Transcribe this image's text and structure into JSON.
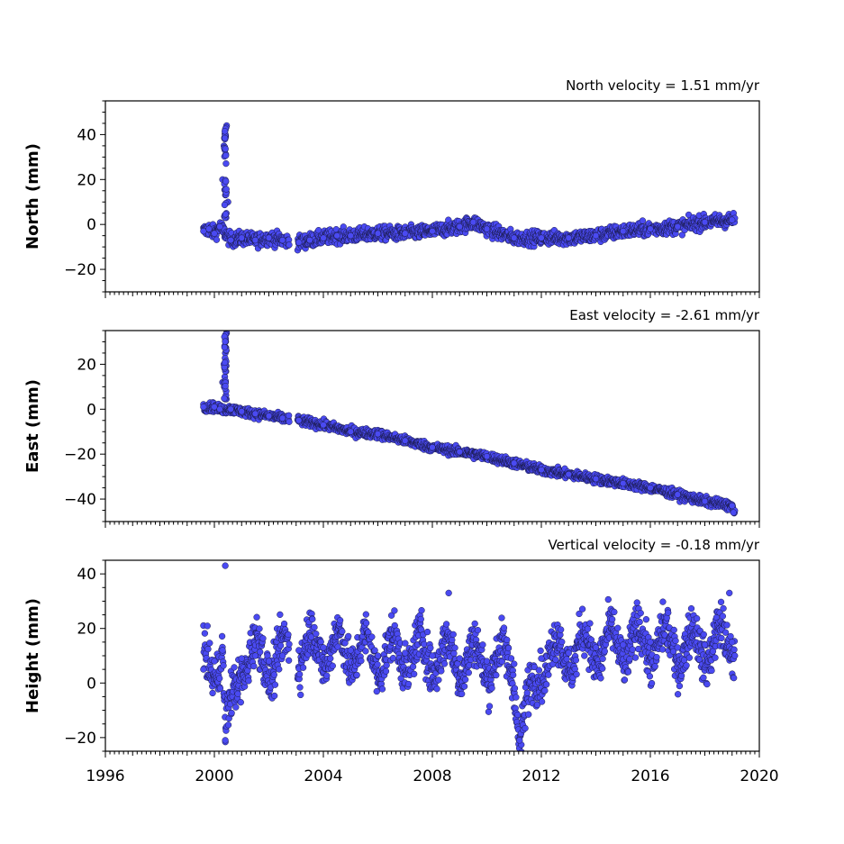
{
  "chart_data": [
    {
      "type": "scatter",
      "title": "North velocity = 1.51 mm/yr",
      "ylabel": "North (mm)",
      "xlim": [
        1996,
        2020
      ],
      "ylim": [
        -30,
        55
      ],
      "yticks": [
        -20,
        0,
        20,
        40
      ],
      "ytick_labels": [
        "−20",
        "0",
        "20",
        "40"
      ],
      "color": "#4a4af2",
      "data_span": [
        1999.6,
        2019.1
      ],
      "gaps": [
        [
          2002.75,
          2003.05
        ]
      ],
      "series": [
        {
          "values": [
            [
              1999.6,
              -3
            ],
            [
              1999.8,
              -2
            ],
            [
              2000.0,
              -4
            ],
            [
              2000.2,
              -1
            ],
            [
              2000.3,
              20
            ],
            [
              2000.35,
              35
            ],
            [
              2000.4,
              42
            ],
            [
              2000.45,
              44
            ],
            [
              2000.5,
              10
            ],
            [
              2000.6,
              -7
            ],
            [
              2001.0,
              -6
            ],
            [
              2001.5,
              -7
            ],
            [
              2002.0,
              -6
            ],
            [
              2002.5,
              -7
            ],
            [
              2003.1,
              -8
            ],
            [
              2003.5,
              -7
            ],
            [
              2004.0,
              -6
            ],
            [
              2004.5,
              -5
            ],
            [
              2005.0,
              -5
            ],
            [
              2006.0,
              -4
            ],
            [
              2007.0,
              -4
            ],
            [
              2008.0,
              -3
            ],
            [
              2009.0,
              -1
            ],
            [
              2009.5,
              1
            ],
            [
              2010.0,
              -2
            ],
            [
              2011.0,
              -6
            ],
            [
              2012.0,
              -6
            ],
            [
              2013.0,
              -6
            ],
            [
              2014.0,
              -5
            ],
            [
              2015.0,
              -3
            ],
            [
              2016.0,
              -2
            ],
            [
              2017.0,
              -1
            ],
            [
              2018.0,
              1
            ],
            [
              2019.0,
              2
            ]
          ]
        }
      ]
    },
    {
      "type": "scatter",
      "title": "East velocity = -2.61 mm/yr",
      "ylabel": "East (mm)",
      "xlim": [
        1996,
        2020
      ],
      "ylim": [
        -50,
        35
      ],
      "yticks": [
        -40,
        -20,
        0,
        20
      ],
      "ytick_labels": [
        "−40",
        "−20",
        "0",
        "20"
      ],
      "color": "#4a4af2",
      "data_span": [
        1999.6,
        2019.1
      ],
      "gaps": [
        [
          2002.75,
          2003.05
        ]
      ],
      "series": [
        {
          "values": [
            [
              1999.6,
              1
            ],
            [
              2000.0,
              1
            ],
            [
              2000.2,
              0
            ],
            [
              2000.3,
              12
            ],
            [
              2000.35,
              20
            ],
            [
              2000.4,
              25
            ],
            [
              2000.45,
              34
            ],
            [
              2000.6,
              0
            ],
            [
              2001.0,
              -1
            ],
            [
              2001.5,
              -2
            ],
            [
              2002.0,
              -3
            ],
            [
              2002.5,
              -4
            ],
            [
              2003.1,
              -5
            ],
            [
              2004.0,
              -7
            ],
            [
              2005.0,
              -10
            ],
            [
              2006.0,
              -11
            ],
            [
              2007.0,
              -14
            ],
            [
              2008.0,
              -17
            ],
            [
              2009.0,
              -19
            ],
            [
              2010.0,
              -21
            ],
            [
              2011.0,
              -24
            ],
            [
              2012.0,
              -27
            ],
            [
              2013.0,
              -29
            ],
            [
              2014.0,
              -31
            ],
            [
              2015.0,
              -33
            ],
            [
              2016.0,
              -35
            ],
            [
              2017.0,
              -38
            ],
            [
              2018.0,
              -41
            ],
            [
              2019.0,
              -43
            ],
            [
              2019.05,
              -46
            ]
          ]
        }
      ]
    },
    {
      "type": "scatter",
      "title": "Vertical velocity = -0.18 mm/yr",
      "ylabel": "Height (mm)",
      "xlim": [
        1996,
        2020
      ],
      "ylim": [
        -25,
        45
      ],
      "yticks": [
        -20,
        0,
        20,
        40
      ],
      "ytick_labels": [
        "−20",
        "0",
        "20",
        "40"
      ],
      "xticks": [
        1996,
        2000,
        2004,
        2008,
        2012,
        2016,
        2020
      ],
      "xtick_labels": [
        "1996",
        "2000",
        "2004",
        "2008",
        "2012",
        "2016",
        "2020"
      ],
      "color": "#4a4af2",
      "data_span": [
        1999.6,
        2019.1
      ],
      "gaps": [
        [
          2002.75,
          2003.05
        ]
      ],
      "series": [
        {
          "values": [
            [
              1999.6,
              5
            ],
            [
              2000.0,
              8
            ],
            [
              2000.3,
              12
            ],
            [
              2000.4,
              43
            ],
            [
              2000.4,
              -21
            ],
            [
              2001.0,
              9
            ],
            [
              2001.5,
              10
            ],
            [
              2002.0,
              8
            ],
            [
              2002.5,
              10
            ],
            [
              2003.1,
              12
            ],
            [
              2004.0,
              13
            ],
            [
              2005.0,
              12
            ],
            [
              2006.0,
              10
            ],
            [
              2007.0,
              11
            ],
            [
              2008.0,
              10
            ],
            [
              2008.6,
              33
            ],
            [
              2009.0,
              9
            ],
            [
              2010.0,
              8
            ],
            [
              2011.0,
              7
            ],
            [
              2011.2,
              -21
            ],
            [
              2012.0,
              9
            ],
            [
              2013.0,
              11
            ],
            [
              2014.0,
              13
            ],
            [
              2015.0,
              14
            ],
            [
              2016.0,
              15
            ],
            [
              2017.0,
              13
            ],
            [
              2018.0,
              14
            ],
            [
              2018.9,
              33
            ],
            [
              2019.0,
              15
            ]
          ]
        }
      ]
    }
  ]
}
